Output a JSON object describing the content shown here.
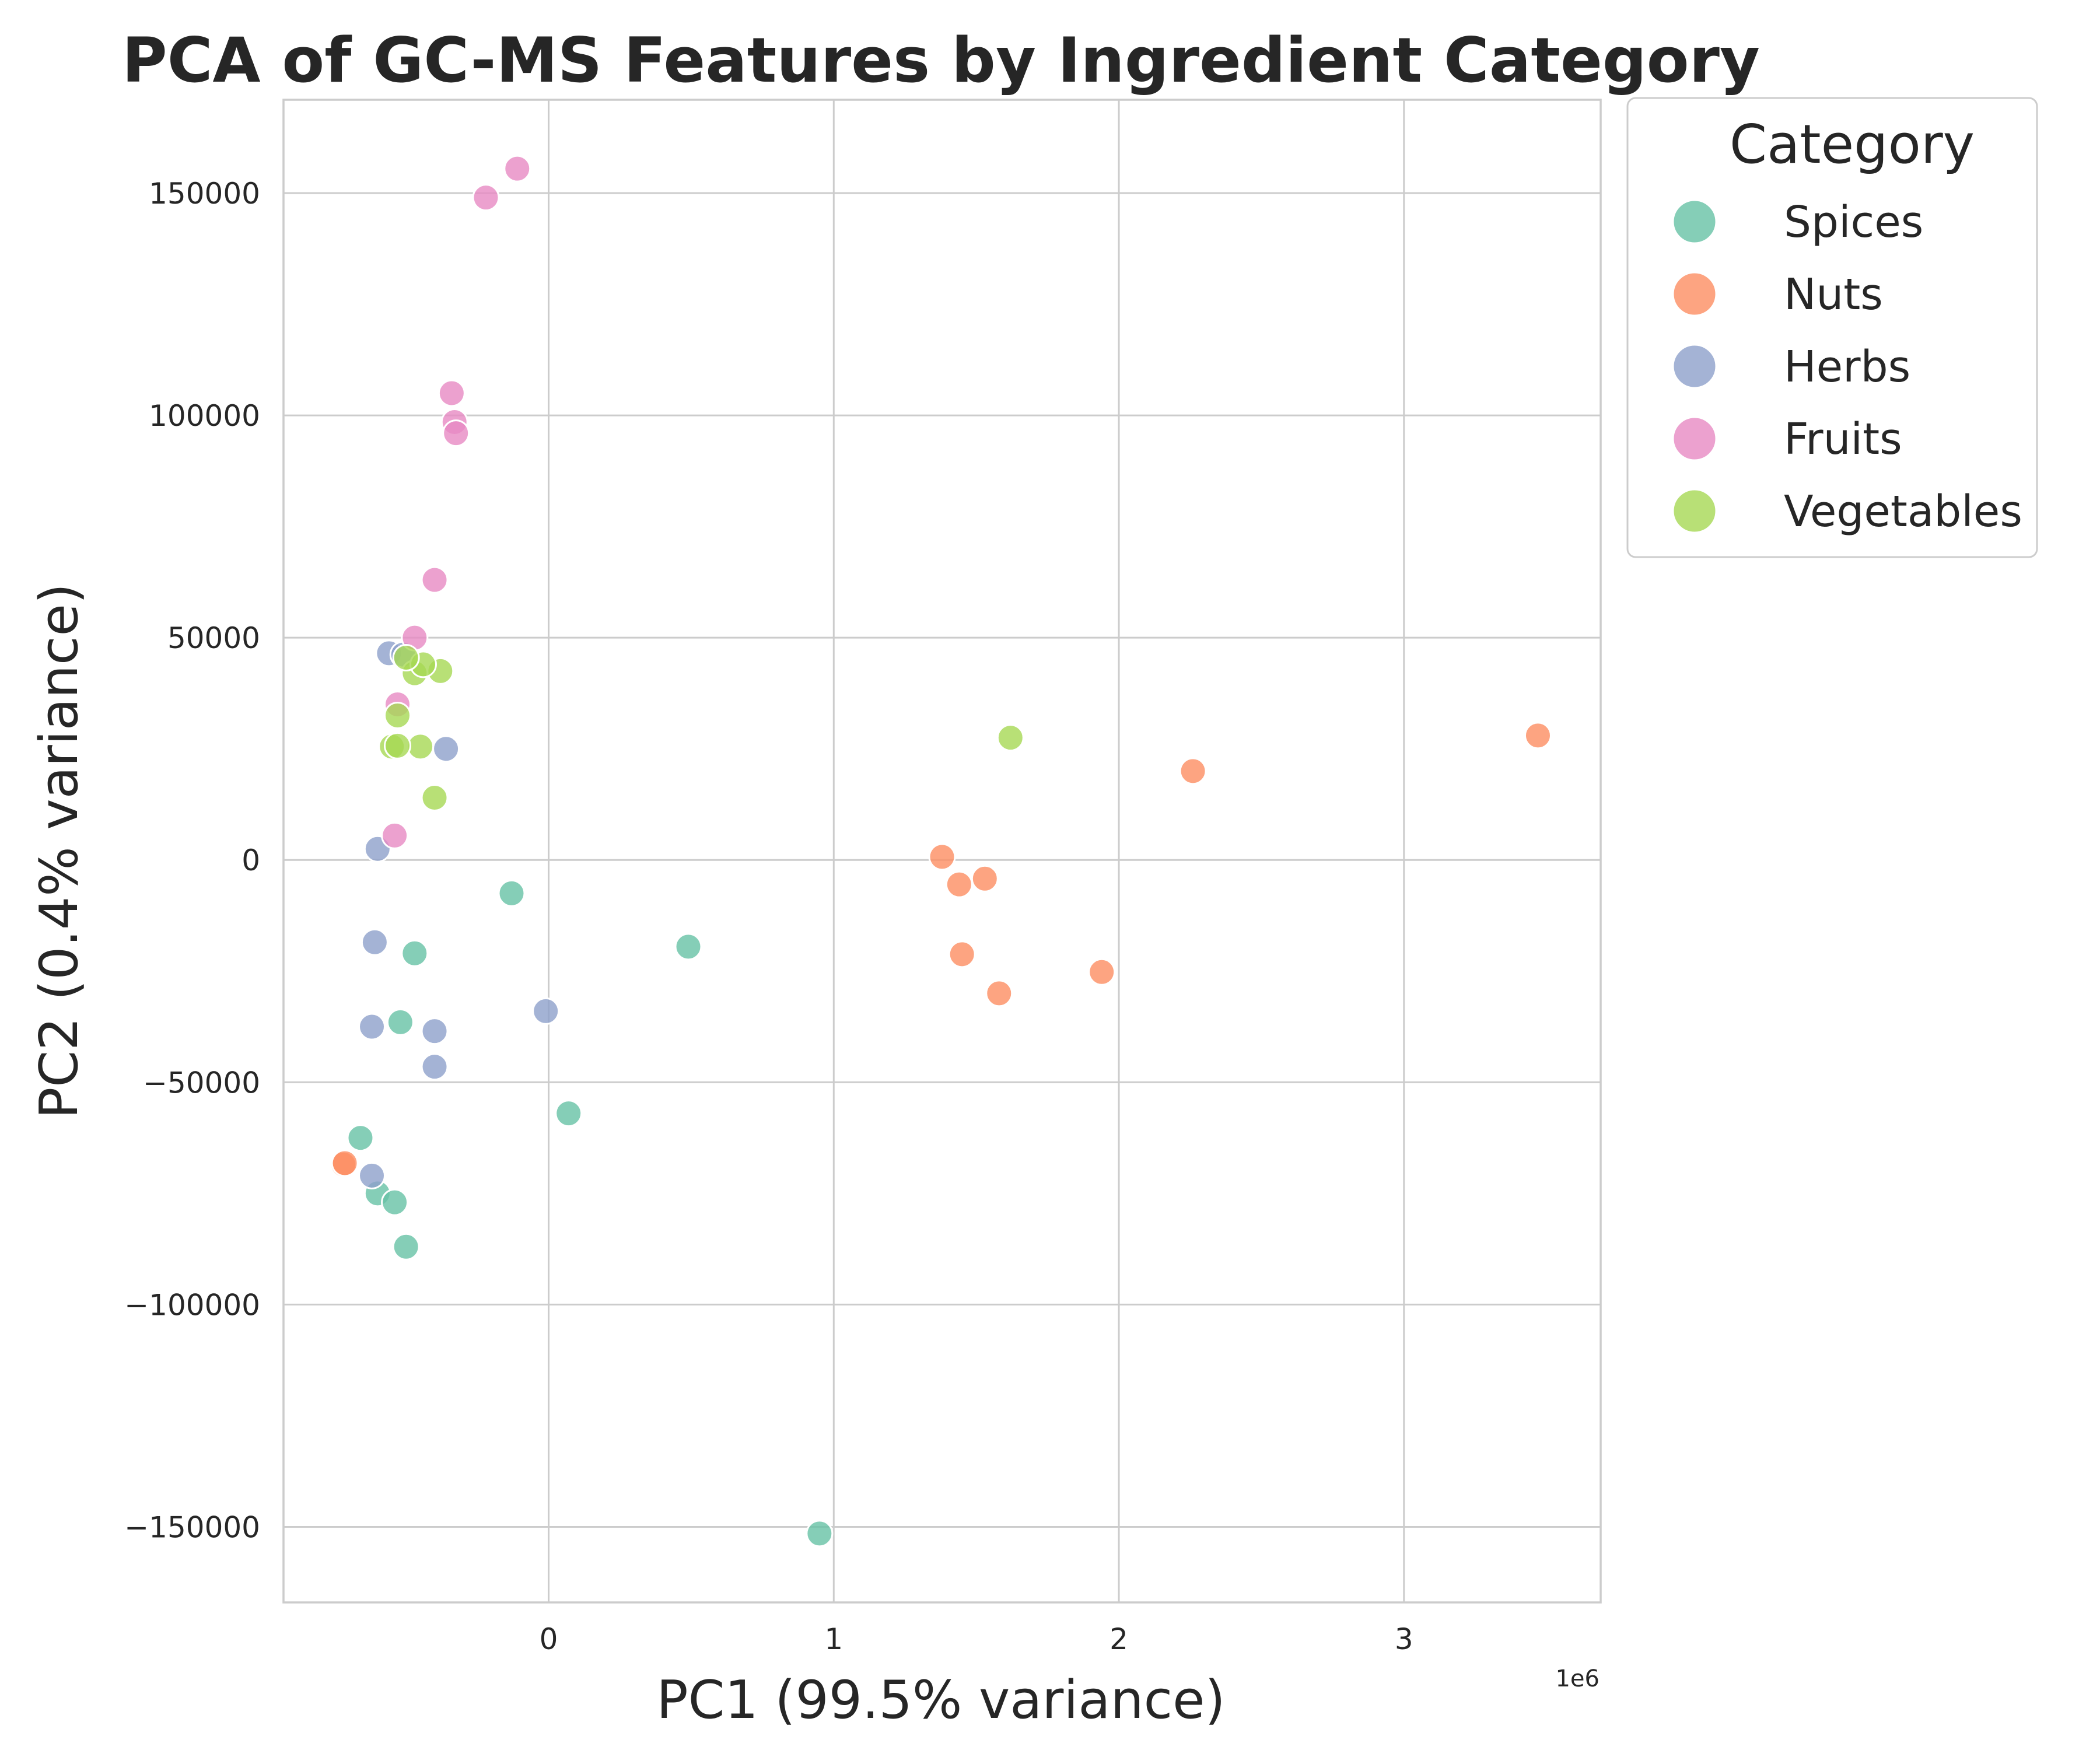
{
  "chart_data": {
    "type": "scatter",
    "title": "PCA of GC-MS Features by Ingredient Category",
    "xlabel": "PC1 (99.5% variance)",
    "ylabel": "PC2 (0.4% variance)",
    "x_offset_label": "1e6",
    "xlim": [
      -930000,
      3690000
    ],
    "ylim": [
      -167000,
      171000
    ],
    "x_ticks": [
      0,
      1000000,
      2000000,
      3000000
    ],
    "x_tick_labels": [
      "0",
      "1",
      "2",
      "3"
    ],
    "y_ticks": [
      -150000,
      -100000,
      -50000,
      0,
      50000,
      100000,
      150000
    ],
    "y_tick_labels": [
      "−150000",
      "−100000",
      "−50000",
      "0",
      "50000",
      "100000",
      "150000"
    ],
    "grid": true,
    "legend": {
      "title": "Category",
      "placement": "outside-top-right"
    },
    "series": [
      {
        "name": "Spices",
        "color": "#66c2a5",
        "x": [
          -130000,
          490000,
          -470000,
          -520000,
          70000,
          -660000,
          -600000,
          -540000,
          -500000,
          950000
        ],
        "y": [
          -7500,
          -19500,
          -21000,
          -36500,
          -57000,
          -62500,
          -75000,
          -77000,
          -87000,
          -151500
        ]
      },
      {
        "name": "Nuts",
        "color": "#fc8d62",
        "x": [
          1380000,
          1440000,
          1530000,
          1450000,
          1580000,
          1940000,
          2260000,
          3470000,
          -720000,
          -715000
        ],
        "y": [
          700,
          -5500,
          -4200,
          -21200,
          -30000,
          -25200,
          20000,
          28000,
          -68500,
          -68200
        ]
      },
      {
        "name": "Herbs",
        "color": "#8da0cb",
        "x": [
          -560000,
          -360000,
          -600000,
          -610000,
          -620000,
          -400000,
          -400000,
          -10000,
          -620000,
          -510000
        ],
        "y": [
          46500,
          25000,
          2500,
          -18500,
          -37500,
          -38500,
          -46500,
          -34000,
          -71000,
          46200
        ]
      },
      {
        "name": "Fruits",
        "color": "#e78ac3",
        "x": [
          -110000,
          -220000,
          -340000,
          -330000,
          -325000,
          -400000,
          -470000,
          -530000,
          -540000
        ],
        "y": [
          155500,
          149000,
          105000,
          98500,
          96000,
          63000,
          50000,
          35000,
          5500
        ]
      },
      {
        "name": "Vegetables",
        "color": "#a6d854",
        "x": [
          -380000,
          -470000,
          -440000,
          -530000,
          -450000,
          -550000,
          -530000,
          -400000,
          1620000,
          -500000
        ],
        "y": [
          42500,
          42000,
          44000,
          32500,
          25500,
          25500,
          25700,
          14000,
          27500,
          45500
        ]
      }
    ]
  }
}
